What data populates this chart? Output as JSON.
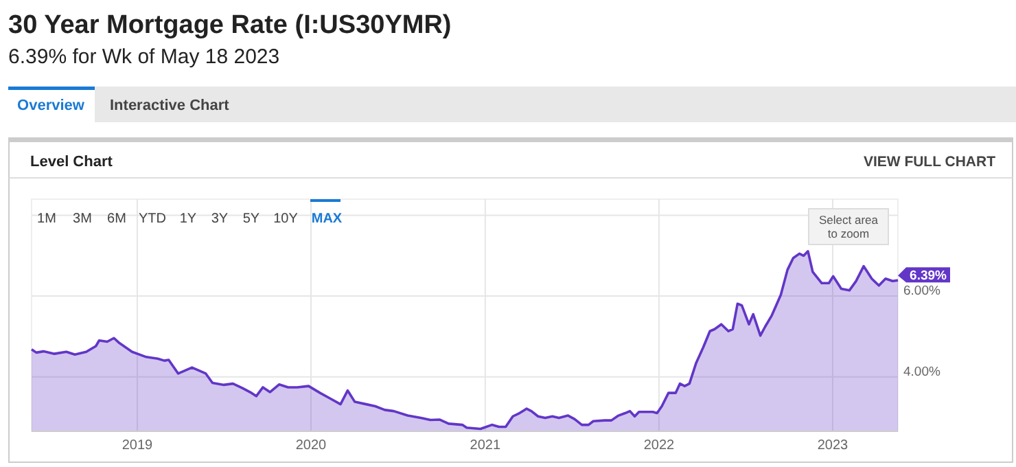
{
  "chart_data": {
    "type": "area",
    "title": "30 Year Mortgage Rate (I:US30YMR)",
    "subtitle": "6.39% for Wk of May 18 2023",
    "xlim": [
      "2018-05-24",
      "2023-05-18"
    ],
    "xticks": [
      {
        "value": "2019-01-01",
        "label": "2019"
      },
      {
        "value": "2020-01-01",
        "label": "2020"
      },
      {
        "value": "2021-01-01",
        "label": "2021"
      },
      {
        "value": "2022-01-01",
        "label": "2022"
      },
      {
        "value": "2023-01-01",
        "label": "2023"
      }
    ],
    "ylim": [
      2.65,
      8.4
    ],
    "yticks": [
      {
        "value": 4,
        "label": "4.00%"
      },
      {
        "value": 6,
        "label": "6.00%"
      },
      {
        "value": 8,
        "label": null
      }
    ],
    "grid": true,
    "series": [
      {
        "color": "#6236c7",
        "x": [
          "2018-05-24",
          "2018-06-03",
          "2018-06-18",
          "2018-07-11",
          "2018-08-05",
          "2018-08-23",
          "2018-09-16",
          "2018-10-06",
          "2018-10-13",
          "2018-10-30",
          "2018-11-13",
          "2018-11-23",
          "2018-12-21",
          "2019-01-20",
          "2019-02-13",
          "2019-02-27",
          "2019-03-08",
          "2019-03-28",
          "2019-04-26",
          "2019-05-25",
          "2019-06-08",
          "2019-07-02",
          "2019-07-21",
          "2019-08-10",
          "2019-08-29",
          "2019-09-08",
          "2019-09-22",
          "2019-10-07",
          "2019-10-26",
          "2019-11-14",
          "2019-12-03",
          "2019-12-27",
          "2020-01-20",
          "2020-02-09",
          "2020-03-03",
          "2020-03-18",
          "2020-04-02",
          "2020-04-26",
          "2020-05-15",
          "2020-06-04",
          "2020-06-23",
          "2020-07-22",
          "2020-08-19",
          "2020-09-08",
          "2020-09-27",
          "2020-10-16",
          "2020-11-14",
          "2020-11-23",
          "2020-12-22",
          "2021-01-15",
          "2021-01-30",
          "2021-02-13",
          "2021-02-28",
          "2021-03-14",
          "2021-03-29",
          "2021-04-08",
          "2021-04-22",
          "2021-05-07",
          "2021-05-22",
          "2021-06-05",
          "2021-06-24",
          "2021-07-08",
          "2021-07-23",
          "2021-08-06",
          "2021-08-16",
          "2021-09-09",
          "2021-09-23",
          "2021-10-08",
          "2021-10-22",
          "2021-11-01",
          "2021-11-11",
          "2021-11-20",
          "2021-12-04",
          "2021-12-19",
          "2021-12-28",
          "2022-01-07",
          "2022-01-21",
          "2022-02-05",
          "2022-02-14",
          "2022-02-24",
          "2022-03-06",
          "2022-03-20",
          "2022-04-04",
          "2022-04-18",
          "2022-04-28",
          "2022-05-12",
          "2022-05-27",
          "2022-06-05",
          "2022-06-15",
          "2022-06-24",
          "2022-07-09",
          "2022-07-18",
          "2022-08-02",
          "2022-08-12",
          "2022-08-26",
          "2022-09-14",
          "2022-09-28",
          "2022-10-10",
          "2022-10-23",
          "2022-11-01",
          "2022-11-10",
          "2022-11-20",
          "2022-12-09",
          "2022-12-24",
          "2023-01-02",
          "2023-01-19",
          "2023-02-05",
          "2023-02-19",
          "2023-03-07",
          "2023-03-24",
          "2023-04-08",
          "2023-04-22",
          "2023-05-07",
          "2023-05-18"
        ],
        "values": [
          4.68,
          4.6,
          4.63,
          4.57,
          4.62,
          4.55,
          4.62,
          4.76,
          4.9,
          4.87,
          4.96,
          4.85,
          4.62,
          4.49,
          4.45,
          4.4,
          4.42,
          4.08,
          4.23,
          4.08,
          3.85,
          3.8,
          3.83,
          3.72,
          3.6,
          3.52,
          3.74,
          3.62,
          3.81,
          3.74,
          3.74,
          3.77,
          3.6,
          3.47,
          3.32,
          3.66,
          3.38,
          3.32,
          3.27,
          3.18,
          3.15,
          3.04,
          2.98,
          2.93,
          2.94,
          2.84,
          2.81,
          2.74,
          2.71,
          2.81,
          2.76,
          2.76,
          3.02,
          3.1,
          3.21,
          3.15,
          3.02,
          2.98,
          3.02,
          2.98,
          3.04,
          2.95,
          2.81,
          2.81,
          2.9,
          2.92,
          2.92,
          3.04,
          3.1,
          3.15,
          3.02,
          3.13,
          3.13,
          3.13,
          3.1,
          3.27,
          3.6,
          3.6,
          3.83,
          3.77,
          3.83,
          4.34,
          4.73,
          5.13,
          5.18,
          5.3,
          5.13,
          5.18,
          5.81,
          5.77,
          5.3,
          5.55,
          5.02,
          5.24,
          5.52,
          6.03,
          6.65,
          6.94,
          7.05,
          7.0,
          7.11,
          6.6,
          6.32,
          6.32,
          6.49,
          6.18,
          6.14,
          6.37,
          6.74,
          6.43,
          6.26,
          6.43,
          6.37,
          6.39
        ]
      }
    ],
    "annotations": [
      "Overview",
      "Interactive Chart",
      "Level Chart",
      "VIEW FULL CHART",
      "1M",
      "3M",
      "6M",
      "YTD",
      "1Y",
      "3Y",
      "5Y",
      "10Y",
      "MAX",
      "Select area to zoom",
      {
        "text": "6.39%",
        "x": "2023-05-18",
        "y": 6.39
      }
    ]
  }
}
